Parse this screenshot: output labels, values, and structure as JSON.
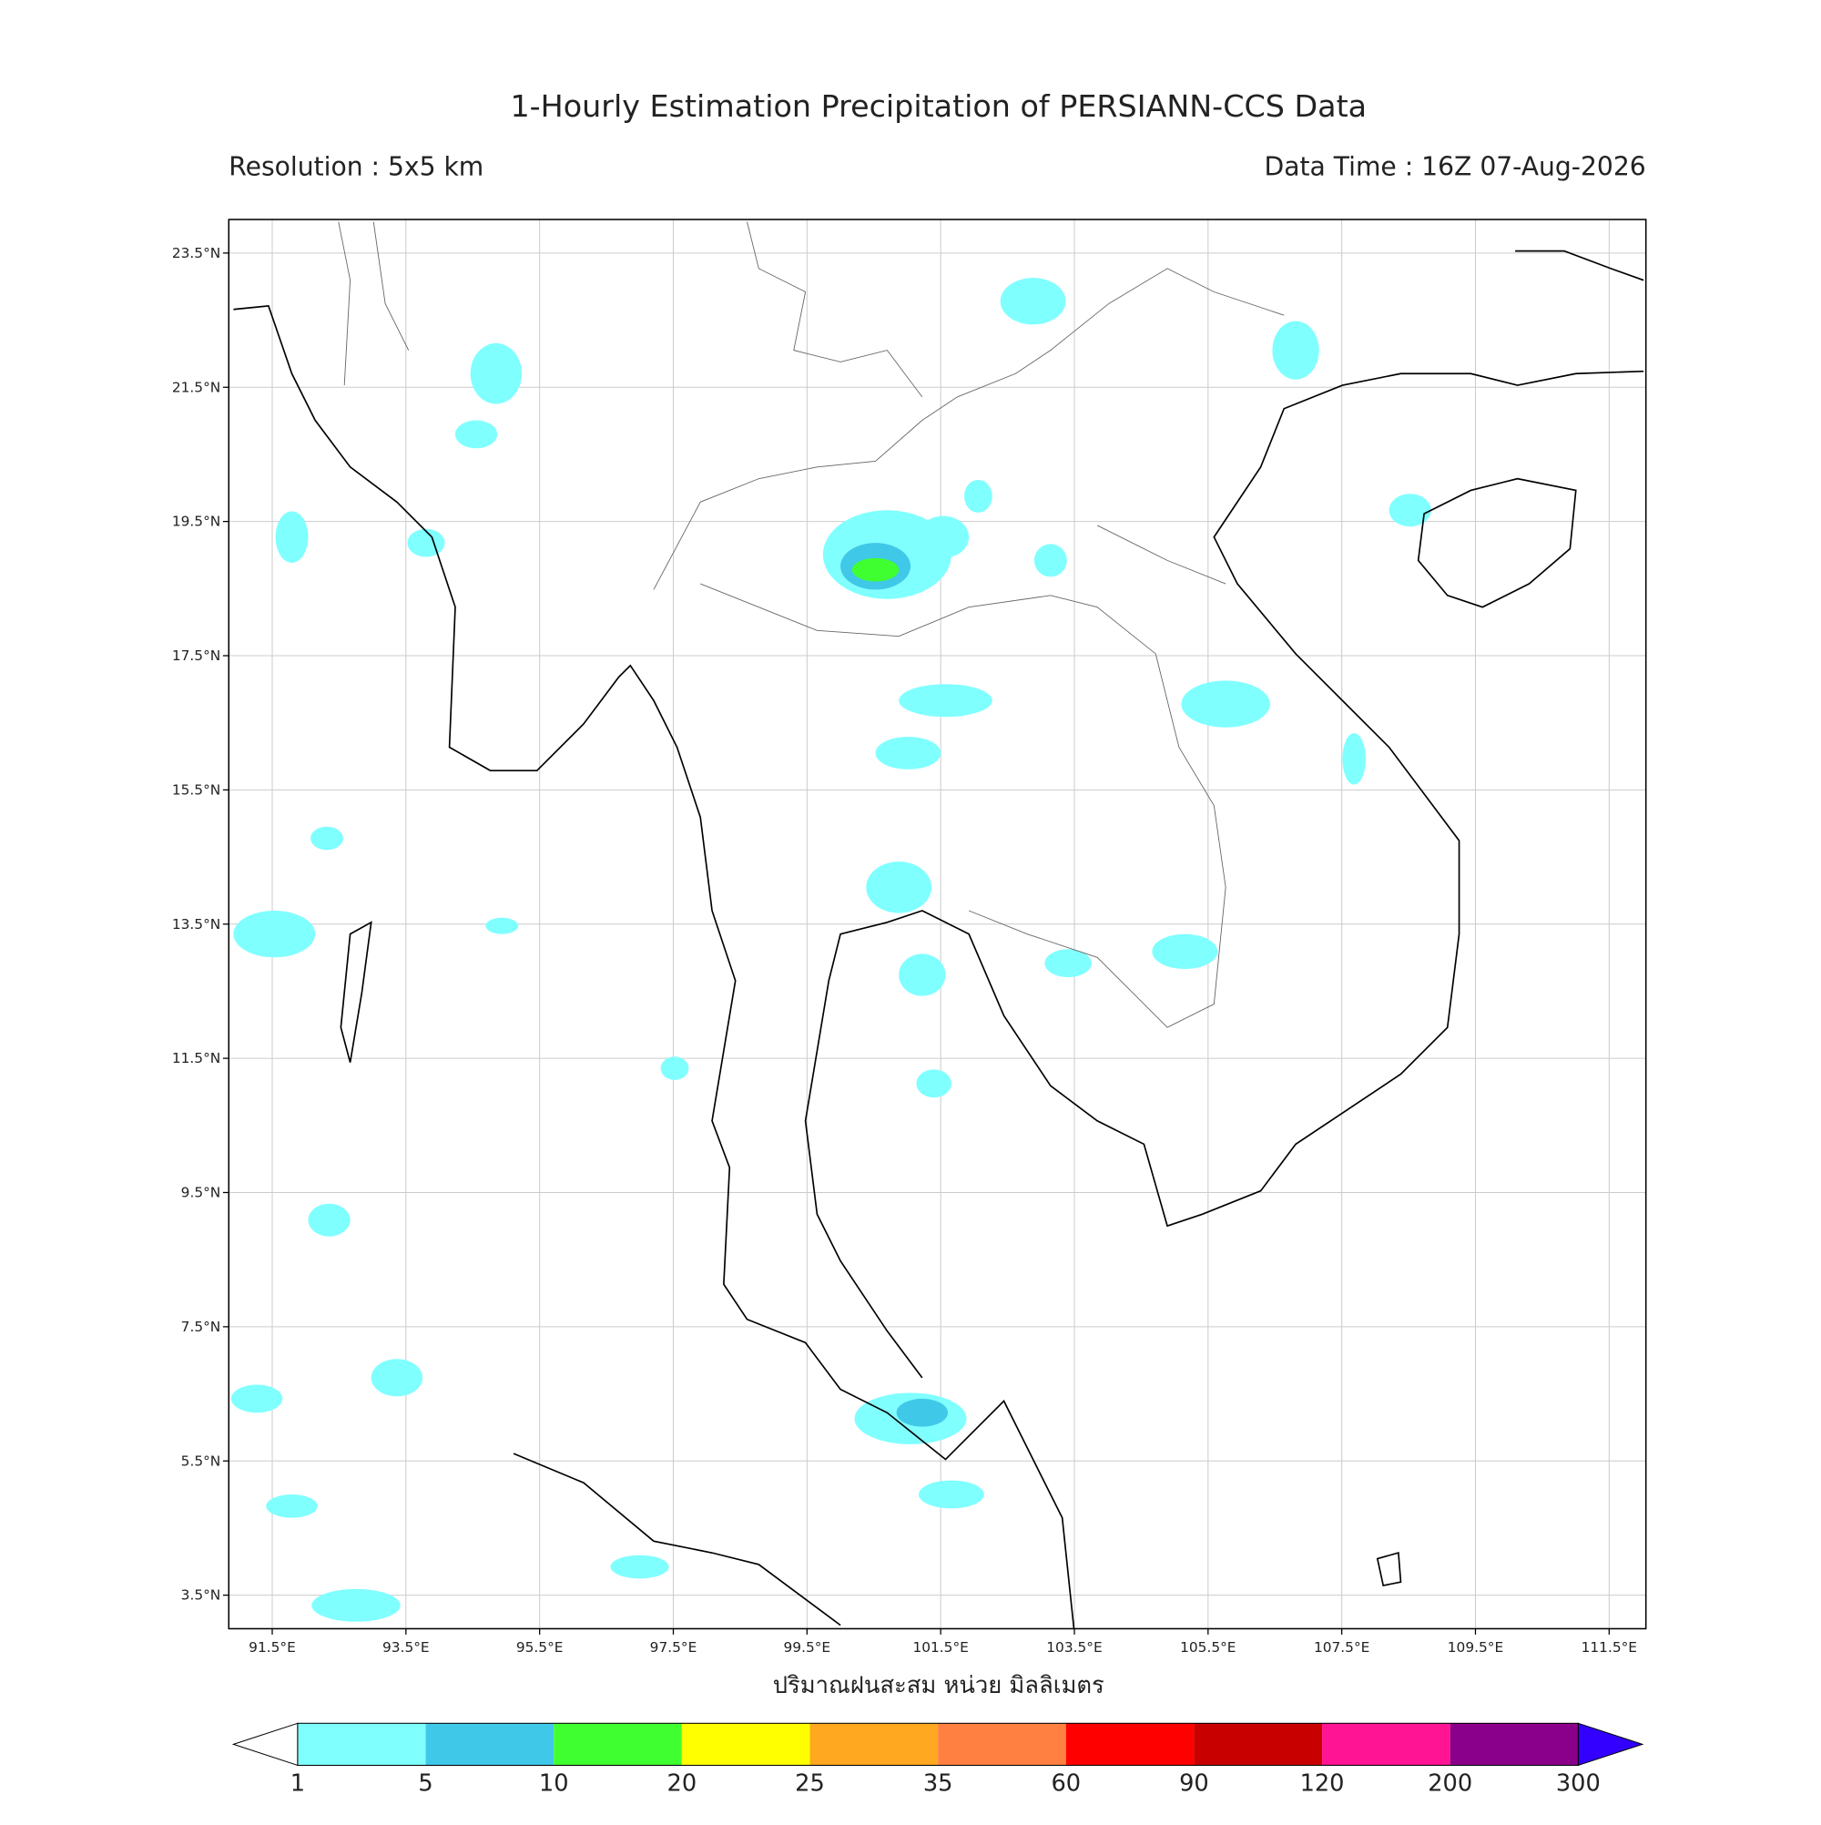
{
  "map": {
    "title": "1-Hourly Estimation Precipitation of PERSIANN-CCS Data",
    "resolution": "Resolution : 5x5 km",
    "data_time": "Data Time : 16Z 07-Aug-2026",
    "x_label": "ปริมาณฝนสะสม หน่วย มิลลิเมตร",
    "lonlim": [
      90.85,
      112.05
    ],
    "latlim": [
      3.0,
      24.0
    ],
    "lon_ticks": [
      {
        "value": 91.5,
        "label": "91.5°E"
      },
      {
        "value": 93.5,
        "label": "93.5°E"
      },
      {
        "value": 95.5,
        "label": "95.5°E"
      },
      {
        "value": 97.5,
        "label": "97.5°E"
      },
      {
        "value": 99.5,
        "label": "99.5°E"
      },
      {
        "value": 101.5,
        "label": "101.5°E"
      },
      {
        "value": 103.5,
        "label": "103.5°E"
      },
      {
        "value": 105.5,
        "label": "105.5°E"
      },
      {
        "value": 107.5,
        "label": "107.5°E"
      },
      {
        "value": 109.5,
        "label": "109.5°E"
      },
      {
        "value": 111.5,
        "label": "111.5°E"
      }
    ],
    "lat_ticks": [
      {
        "value": 23.5,
        "label": "23.5°N"
      },
      {
        "value": 21.5,
        "label": "21.5°N"
      },
      {
        "value": 19.5,
        "label": "19.5°N"
      },
      {
        "value": 17.5,
        "label": "17.5°N"
      },
      {
        "value": 15.5,
        "label": "15.5°N"
      },
      {
        "value": 13.5,
        "label": "13.5°N"
      },
      {
        "value": 11.5,
        "label": "11.5°N"
      },
      {
        "value": 9.5,
        "label": "9.5°N"
      },
      {
        "value": 7.5,
        "label": "7.5°N"
      },
      {
        "value": 5.5,
        "label": "5.5°N"
      },
      {
        "value": 3.5,
        "label": "3.5°N"
      }
    ],
    "colorbar": {
      "levels": [
        1,
        5,
        10,
        20,
        25,
        35,
        60,
        90,
        120,
        200,
        300
      ],
      "colors": [
        "#80ffff",
        "#40c8e8",
        "#40ff30",
        "#ffff00",
        "#ffa820",
        "#ff8040",
        "#ff0000",
        "#c80000",
        "#ff1493",
        "#8b008b"
      ],
      "under_color": "#ffffff",
      "over_color": "#3300ff"
    }
  }
}
